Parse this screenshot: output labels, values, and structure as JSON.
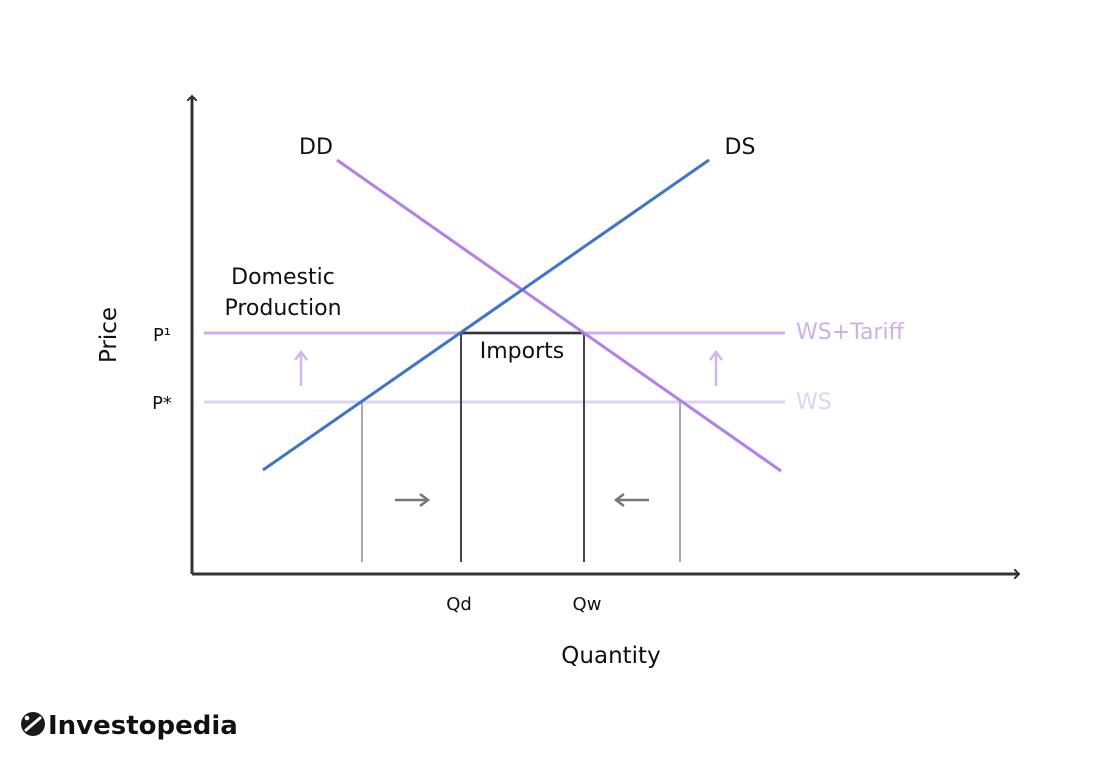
{
  "diagram": {
    "y_axis_label": "Price",
    "x_axis_label": "Quantity",
    "curves": {
      "demand_label": "DD",
      "supply_label": "DS"
    },
    "price_levels": {
      "p1_label": "P¹",
      "pstar_label": "P*"
    },
    "world_supply": {
      "with_tariff_label": "WS+Tariff",
      "base_label": "WS"
    },
    "quantity_ticks": {
      "qd_label": "Qd",
      "qw_label": "Qw"
    },
    "region_labels": {
      "domestic_line1": "Domestic",
      "domestic_line2": "Production",
      "imports": "Imports"
    },
    "colors": {
      "demand": "#b57ee8",
      "supply": "#3f74c9",
      "ws_tariff": "#c9b0f0",
      "ws": "#dcd2f4",
      "axis": "#333333",
      "drop_line_dark": "#444444",
      "drop_line_light": "#aaaaaa",
      "shift_arrow": "#777777",
      "up_arrow": "#cdb8f2"
    }
  },
  "branding": {
    "logo_text": "Investopedia"
  }
}
